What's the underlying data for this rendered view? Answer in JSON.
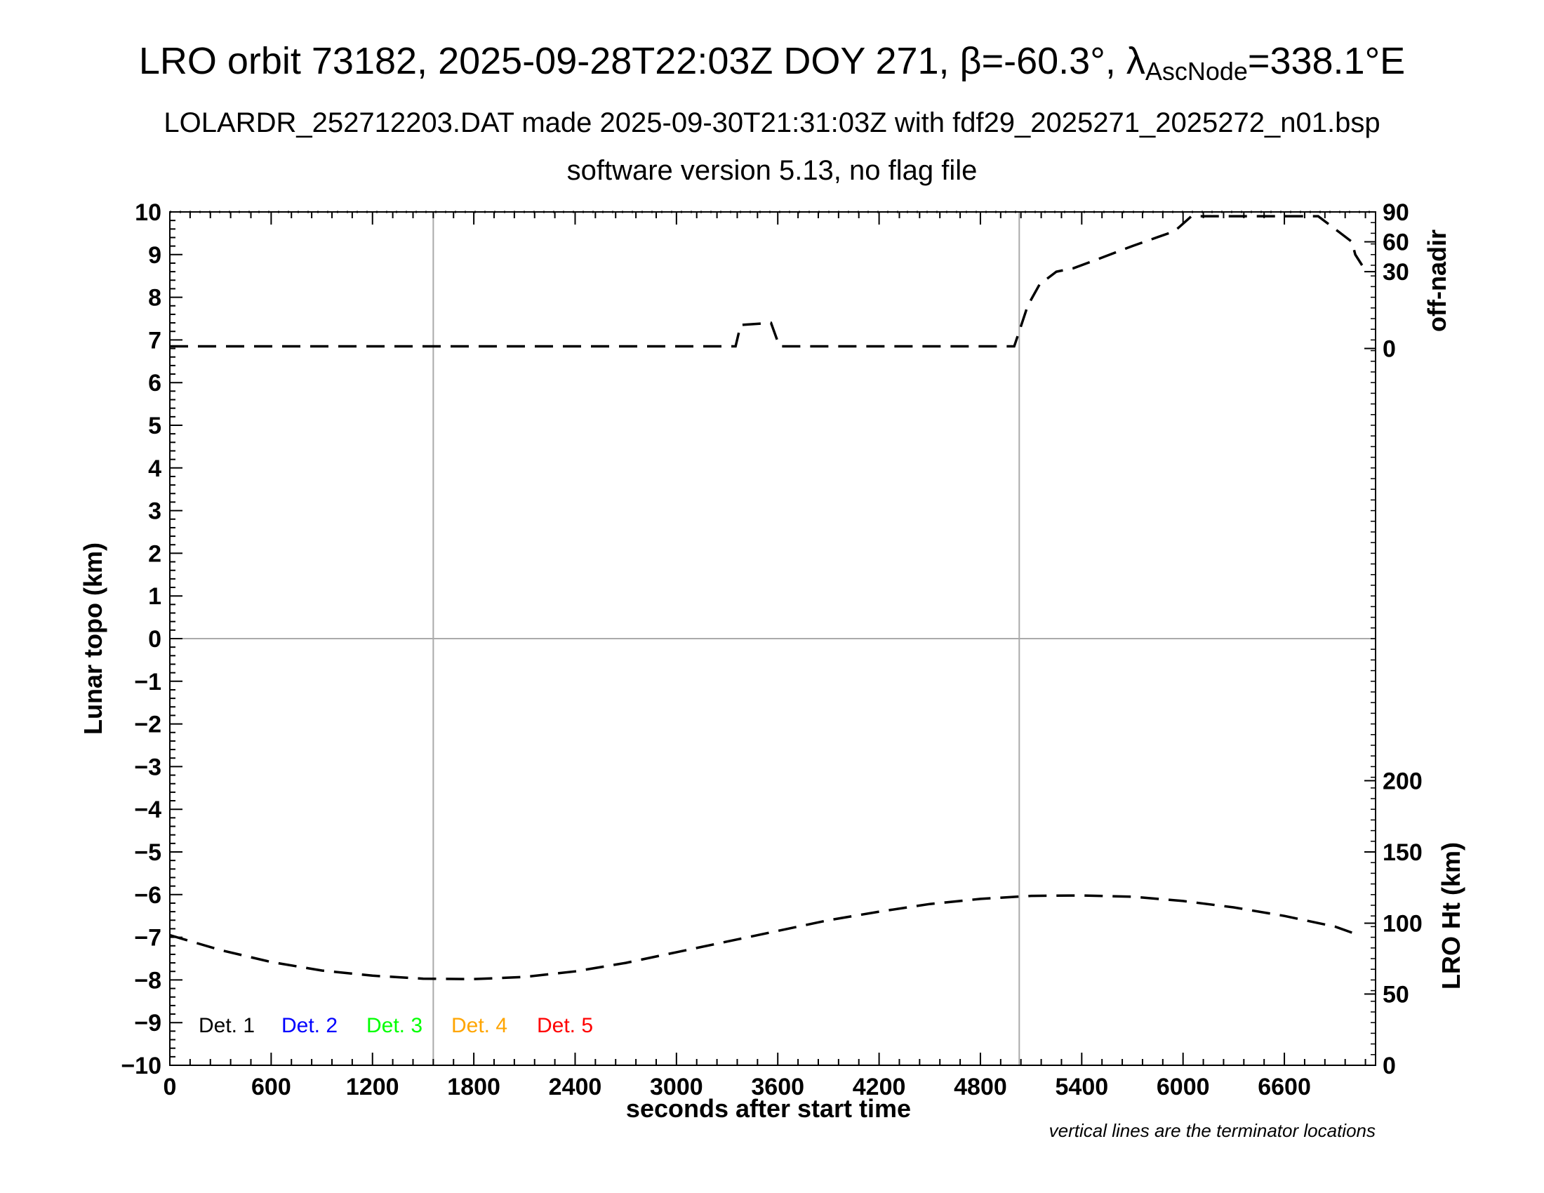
{
  "header": {
    "title_prefix": "LRO orbit 73182, 2025-09-28T22:03Z DOY 271, β=-60.3°, λ",
    "title_subscript": "AscNode",
    "title_suffix": "=338.1°E",
    "subtitle1": "LOLARDR_252712203.DAT made 2025-09-30T21:31:03Z with fdf29_2025271_2025272_n01.bsp",
    "subtitle2": "software version 5.13, no flag file"
  },
  "note": "vertical lines are the terminator locations",
  "chart_data": {
    "type": "line",
    "xlabel": "seconds after start time",
    "ylabel": "Lunar topo (km)",
    "xlim": [
      0,
      7140
    ],
    "ylim": [
      -10,
      10
    ],
    "x_ticks": [
      0,
      600,
      1200,
      1800,
      2400,
      3000,
      3600,
      4200,
      4800,
      5400,
      6000,
      6600
    ],
    "y_ticks": [
      10,
      9,
      8,
      7,
      6,
      5,
      4,
      3,
      2,
      1,
      0,
      -1,
      -2,
      -3,
      -4,
      -5,
      -6,
      -7,
      -8,
      -9,
      -10
    ],
    "y_tick_labels": [
      "10",
      "9",
      "8",
      "7",
      "6",
      "5",
      "4",
      "3",
      "2",
      "1",
      "0",
      "−1",
      "−2",
      "−3",
      "−4",
      "−5",
      "−6",
      "−7",
      "−8",
      "−9",
      "−10"
    ],
    "terminator_lines_x": [
      1560,
      5030
    ],
    "zero_line_y": 0,
    "right_axis_offnadir": {
      "label": "off-nadir",
      "ticks": [
        0,
        30,
        60,
        90
      ],
      "positions_on_topo_scale": [
        6.8,
        8.6,
        9.3,
        10
      ]
    },
    "right_axis_ht": {
      "label": "LRO Ht (km)",
      "ticks": [
        0,
        50,
        100,
        150,
        200
      ],
      "positions_on_topo_scale": [
        -10,
        -8.33,
        -6.67,
        -5,
        -3.33
      ]
    },
    "legend": [
      {
        "label": "Det. 1",
        "color": "#000000"
      },
      {
        "label": "Det. 2",
        "color": "#0000ff"
      },
      {
        "label": "Det. 3",
        "color": "#00ff00"
      },
      {
        "label": "Det. 4",
        "color": "#ffa500"
      },
      {
        "label": "Det. 5",
        "color": "#ff0000"
      }
    ],
    "series": [
      {
        "points": [
          [
            0,
            6.85
          ],
          [
            3350,
            6.85
          ],
          [
            3380,
            7.35
          ],
          [
            3560,
            7.4
          ],
          [
            3610,
            6.85
          ],
          [
            4990,
            6.85
          ],
          [
            5000,
            6.85
          ],
          [
            5030,
            7.2
          ],
          [
            5080,
            7.8
          ],
          [
            5150,
            8.3
          ],
          [
            5250,
            8.6
          ],
          [
            5350,
            8.68
          ],
          [
            5500,
            8.9
          ],
          [
            5700,
            9.2
          ],
          [
            5950,
            9.55
          ],
          [
            6050,
            9.9
          ],
          [
            6800,
            9.9
          ],
          [
            6900,
            9.6
          ],
          [
            7000,
            9.3
          ],
          [
            7000,
            9.3
          ],
          [
            7020,
            9.0
          ],
          [
            7060,
            8.75
          ]
        ]
      },
      {
        "points": [
          [
            0,
            -6.95
          ],
          [
            300,
            -7.3
          ],
          [
            600,
            -7.58
          ],
          [
            900,
            -7.78
          ],
          [
            1200,
            -7.9
          ],
          [
            1500,
            -7.97
          ],
          [
            1800,
            -7.98
          ],
          [
            2100,
            -7.93
          ],
          [
            2400,
            -7.8
          ],
          [
            2700,
            -7.6
          ],
          [
            3000,
            -7.35
          ],
          [
            3300,
            -7.1
          ],
          [
            3600,
            -6.85
          ],
          [
            3900,
            -6.6
          ],
          [
            4200,
            -6.4
          ],
          [
            4500,
            -6.22
          ],
          [
            4800,
            -6.1
          ],
          [
            5100,
            -6.03
          ],
          [
            5400,
            -6.02
          ],
          [
            5700,
            -6.05
          ],
          [
            6000,
            -6.15
          ],
          [
            6300,
            -6.3
          ],
          [
            6600,
            -6.5
          ],
          [
            6900,
            -6.75
          ],
          [
            7020,
            -6.92
          ]
        ]
      }
    ]
  }
}
